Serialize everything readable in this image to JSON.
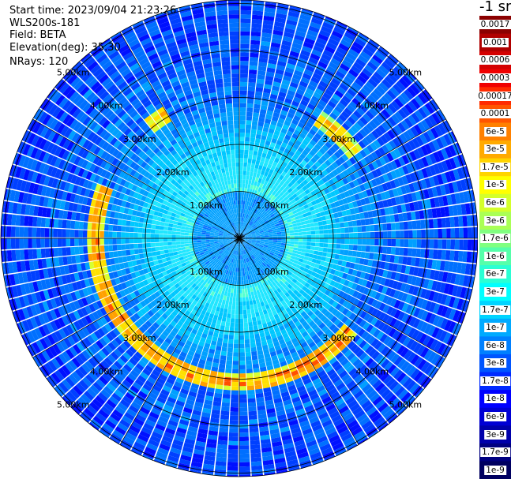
{
  "header": {
    "start_time": "Start time: 2023/09/04 21:23:26",
    "instrument": "WLS200s-181",
    "field": "Field: BETA",
    "elevation": "Elevation(deg): 35.30",
    "nrays": "NRays: 120"
  },
  "colorbar": {
    "unit_label": "-1 sr",
    "labels": [
      "0.0017",
      "0.001",
      "0.0006",
      "0.0003",
      "0.00017",
      "0.0001",
      "6e-5",
      "3e-5",
      "1.7e-5",
      "1e-5",
      "6e-6",
      "3e-6",
      "1.7e-6",
      "1e-6",
      "6e-7",
      "3e-7",
      "1.7e-7",
      "1e-7",
      "6e-8",
      "3e-8",
      "1.7e-8",
      "1e-8",
      "6e-9",
      "3e-9",
      "1.7e-9",
      "1e-9"
    ],
    "colors": [
      "#8b0000",
      "#b00000",
      "#d40000",
      "#f00000",
      "#ff2a00",
      "#ff5500",
      "#ff8000",
      "#ffaa00",
      "#ffd400",
      "#ffff00",
      "#d4ff2a",
      "#aaff55",
      "#80ff80",
      "#55ffaa",
      "#2affd4",
      "#00ffff",
      "#00d4ff",
      "#00aaff",
      "#0080ff",
      "#0055ff",
      "#002aff",
      "#0000ff",
      "#0000d4",
      "#0000aa",
      "#000080",
      "#000060"
    ]
  },
  "chart_data": {
    "type": "heatmap",
    "projection": "polar (PPI scan)",
    "field": "BETA",
    "nrays": 120,
    "range_rings_km": [
      1.0,
      2.0,
      3.0,
      4.0,
      5.0
    ],
    "ring_labels": [
      "1.00km",
      "2.00km",
      "3.00km",
      "4.00km",
      "5.00km"
    ],
    "colorscale": "log10 backscatter, 1e-9 to 0.0017",
    "description_values": {
      "inner_disk_beta": "3e-8",
      "near_field_beta": "1e-7 to 6e-7",
      "cloud_ring_range_km": 3.0,
      "cloud_ring_beta_peak": "6e-5 to 1.7e-4",
      "far_field_beta": "1e-8 to 6e-8"
    }
  }
}
